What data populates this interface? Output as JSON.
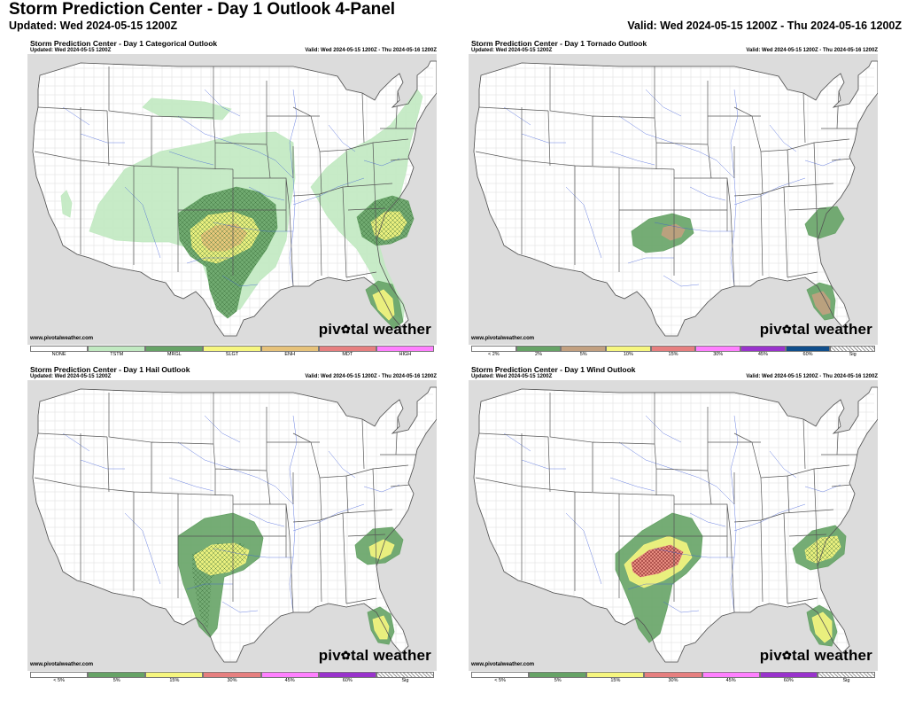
{
  "page": {
    "title": "Storm Prediction Center - Day 1 Outlook 4-Panel",
    "updated": "Updated: Wed 2024-05-15 1200Z",
    "valid": "Valid: Wed 2024-05-15 1200Z - Thu 2024-05-16 1200Z"
  },
  "brand": {
    "pre": "piv",
    "gear": "✿",
    "post": "tal weather"
  },
  "colors": {
    "land": "#ffffff",
    "water_outside": "#dcdcdc",
    "county_lines": "#cfcfcf",
    "state_lines": "#555555",
    "rivers": "#3a58d8",
    "tstm": "#c1e9c1",
    "mrgl": "#66a366",
    "slgt": "#f6f67f",
    "enh": "#e6c27a",
    "mdt": "#e67f7f",
    "high": "#ff80ff",
    "tor_5": "#c2a080",
    "tor_2": "#66a366",
    "sig": "hatched"
  },
  "panels": [
    {
      "id": "categorical",
      "title": "Storm Prediction Center - Day 1 Categorical Outlook",
      "updated": "Updated: Wed 2024-05-15 1200Z",
      "valid": "Valid: Wed 2024-05-15 1200Z - Thu 2024-05-16 1200Z",
      "url": "www.pivotalweather.com",
      "legend": [
        {
          "label": "NONE",
          "color": "#ffffff"
        },
        {
          "label": "TSTM",
          "color": "#c1e9c1"
        },
        {
          "label": "MRGL",
          "color": "#66a366"
        },
        {
          "label": "SLGT",
          "color": "#f6f67f"
        },
        {
          "label": "ENH",
          "color": "#e6c27a"
        },
        {
          "label": "MDT",
          "color": "#e67f7f"
        },
        {
          "label": "HIGH",
          "color": "#ff80ff"
        }
      ],
      "areas": [
        "TSTM",
        "MRGL",
        "SLGT",
        "ENH"
      ]
    },
    {
      "id": "tornado",
      "title": "Storm Prediction Center - Day 1 Tornado Outlook",
      "updated": "Updated: Wed 2024-05-15 1200Z",
      "valid": "Valid: Wed 2024-05-15 1200Z - Thu 2024-05-16 1200Z",
      "url": "www.pivotalweather.com",
      "legend": [
        {
          "label": "< 2%",
          "color": "#ffffff"
        },
        {
          "label": "2%",
          "color": "#66a366"
        },
        {
          "label": "5%",
          "color": "#c2a080"
        },
        {
          "label": "10%",
          "color": "#f6f67f"
        },
        {
          "label": "15%",
          "color": "#e67f7f"
        },
        {
          "label": "30%",
          "color": "#ff80ff"
        },
        {
          "label": "45%",
          "color": "#9933cc"
        },
        {
          "label": "60%",
          "color": "#104e8b"
        },
        {
          "label": "Sig",
          "color": "hatch"
        }
      ],
      "areas": [
        "2%",
        "5%"
      ]
    },
    {
      "id": "hail",
      "title": "Storm Prediction Center - Day 1 Hail Outlook",
      "updated": "Updated: Wed 2024-05-15 1200Z",
      "valid": "Valid: Wed 2024-05-15 1200Z - Thu 2024-05-16 1200Z",
      "url": "www.pivotalweather.com",
      "legend": [
        {
          "label": "< 5%",
          "color": "#ffffff"
        },
        {
          "label": "5%",
          "color": "#66a366"
        },
        {
          "label": "15%",
          "color": "#f6f67f"
        },
        {
          "label": "30%",
          "color": "#e67f7f"
        },
        {
          "label": "45%",
          "color": "#ff80ff"
        },
        {
          "label": "60%",
          "color": "#9933cc"
        },
        {
          "label": "Sig",
          "color": "hatch"
        }
      ],
      "areas": [
        "5%",
        "15%"
      ]
    },
    {
      "id": "wind",
      "title": "Storm Prediction Center - Day 1 Wind Outlook",
      "updated": "Updated: Wed 2024-05-15 1200Z",
      "valid": "Valid: Wed 2024-05-15 1200Z - Thu 2024-05-16 1200Z",
      "url": "www.pivotalweather.com",
      "legend": [
        {
          "label": "< 5%",
          "color": "#ffffff"
        },
        {
          "label": "5%",
          "color": "#66a366"
        },
        {
          "label": "15%",
          "color": "#f6f67f"
        },
        {
          "label": "30%",
          "color": "#e67f7f"
        },
        {
          "label": "45%",
          "color": "#ff80ff"
        },
        {
          "label": "60%",
          "color": "#9933cc"
        },
        {
          "label": "Sig",
          "color": "hatch"
        }
      ],
      "areas": [
        "5%",
        "15%",
        "30%"
      ]
    }
  ]
}
